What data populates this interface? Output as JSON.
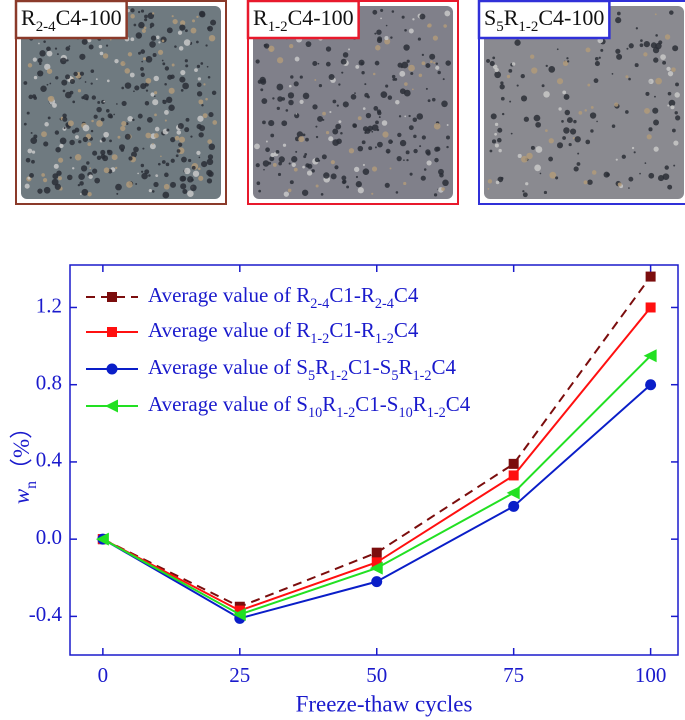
{
  "photos": [
    {
      "label": [
        {
          "text": "R"
        },
        {
          "text": "2-4",
          "sub": true
        },
        {
          "text": "C4-100"
        }
      ],
      "color": "#8b3a2a",
      "tone": "#6f7a80"
    },
    {
      "label": [
        {
          "text": "R"
        },
        {
          "text": "1-2",
          "sub": true
        },
        {
          "text": "C4-100"
        }
      ],
      "color": "#e8192c",
      "tone": "#80808a"
    },
    {
      "label": [
        {
          "text": "S"
        },
        {
          "text": "5",
          "sub": true
        },
        {
          "text": "R"
        },
        {
          "text": "1-2",
          "sub": true
        },
        {
          "text": "C4-100"
        }
      ],
      "color": "#3030d8",
      "tone": "#8a8a90"
    }
  ],
  "chart_data": {
    "type": "line",
    "x": [
      0,
      25,
      50,
      75,
      100
    ],
    "xlim": [
      -6,
      105
    ],
    "xticks": [
      0,
      25,
      50,
      75,
      100
    ],
    "ylim": [
      -0.6,
      1.42
    ],
    "yticks": [
      -0.4,
      {
        "value": 0,
        "label": "0.0"
      },
      0.4,
      0.8,
      1.2
    ],
    "xlabel": "Freeze-thaw cycles",
    "ylabel": [
      {
        "text": "w",
        "italic": true
      },
      {
        "text": "n",
        "sub": true
      },
      {
        "text": "（%）"
      }
    ],
    "legend": "upper left",
    "series": [
      {
        "name": [
          {
            "text": "Average value of R"
          },
          {
            "text": "2-4",
            "sub": true
          },
          {
            "text": "C1-R"
          },
          {
            "text": "2-4",
            "sub": true
          },
          {
            "text": "C4"
          }
        ],
        "color": "#7b0d0d",
        "marker": "square",
        "dashed": true,
        "values": [
          0,
          -0.35,
          -0.07,
          0.39,
          1.36
        ]
      },
      {
        "name": [
          {
            "text": "Average value of R"
          },
          {
            "text": "1-2",
            "sub": true
          },
          {
            "text": "C1-R"
          },
          {
            "text": "1-2",
            "sub": true
          },
          {
            "text": "C4"
          }
        ],
        "color": "#ff1010",
        "marker": "square",
        "dashed": false,
        "values": [
          0,
          -0.37,
          -0.12,
          0.33,
          1.2
        ]
      },
      {
        "name": [
          {
            "text": "Average value of S"
          },
          {
            "text": "5",
            "sub": true
          },
          {
            "text": "R"
          },
          {
            "text": "1-2",
            "sub": true
          },
          {
            "text": "C1-S"
          },
          {
            "text": "5",
            "sub": true
          },
          {
            "text": "R"
          },
          {
            "text": "1-2",
            "sub": true
          },
          {
            "text": "C4"
          }
        ],
        "color": "#0a1ec8",
        "marker": "circle",
        "dashed": false,
        "values": [
          0,
          -0.41,
          -0.22,
          0.17,
          0.8
        ]
      },
      {
        "name": [
          {
            "text": "Average value of S"
          },
          {
            "text": "10",
            "sub": true
          },
          {
            "text": "R"
          },
          {
            "text": "1-2",
            "sub": true
          },
          {
            "text": "C1-S"
          },
          {
            "text": "10",
            "sub": true
          },
          {
            "text": "R"
          },
          {
            "text": "1-2",
            "sub": true
          },
          {
            "text": "C4"
          }
        ],
        "color": "#22e022",
        "marker": "triangle-left",
        "dashed": false,
        "values": [
          0,
          -0.39,
          -0.15,
          0.24,
          0.95
        ]
      }
    ]
  }
}
